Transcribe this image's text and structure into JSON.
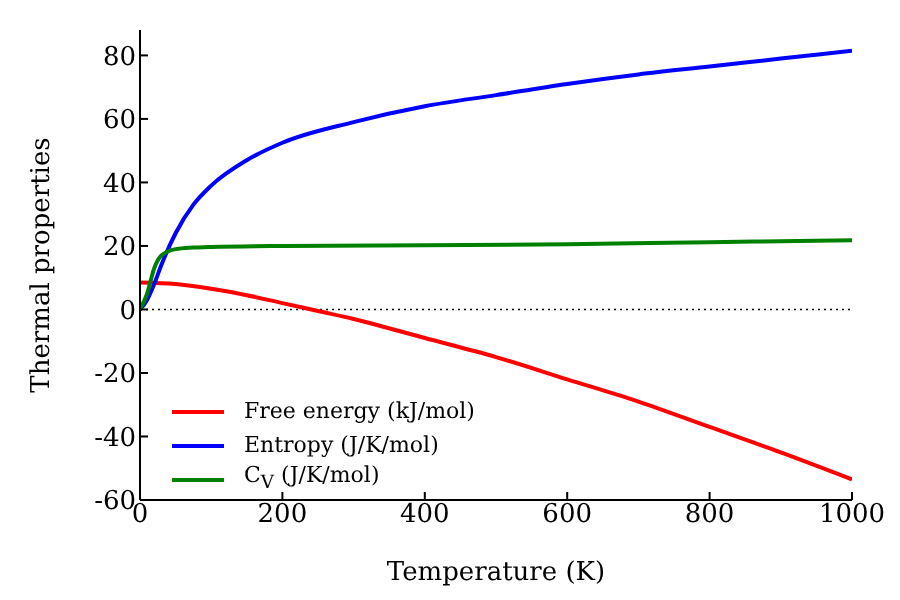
{
  "chart_data": {
    "type": "line",
    "xlabel": "Temperature (K)",
    "ylabel": "Thermal properties",
    "xlim": [
      0,
      1000
    ],
    "xticks": [
      0,
      200,
      400,
      600,
      800,
      1000
    ],
    "ylim": [
      -60,
      88
    ],
    "yticks": [
      -60,
      -40,
      -20,
      0,
      20,
      40,
      60,
      80
    ],
    "grid": false,
    "legend": "bottom left",
    "marker": "none",
    "line_style": "solid",
    "ref_lines": [
      {
        "axis": "y",
        "value": 0,
        "color": "#000000",
        "line_style": "dotted"
      }
    ],
    "series": [
      {
        "name": "Free energy (kJ/mol)",
        "color": "#ff0000",
        "x": [
          0,
          50,
          100,
          150,
          200,
          250,
          300,
          400,
          500,
          600,
          700,
          800,
          900,
          1000
        ],
        "values": [
          8.5,
          8,
          6.5,
          4.5,
          2,
          -0.5,
          -3,
          -9,
          -15,
          -22,
          -29,
          -37,
          -45,
          -53.5
        ]
      },
      {
        "name": "Entropy (J/K/mol)",
        "color": "#0000ff",
        "x": [
          0,
          10,
          20,
          30,
          50,
          75,
          100,
          150,
          200,
          300,
          400,
          500,
          600,
          700,
          800,
          900,
          1000
        ],
        "values": [
          0,
          3,
          8,
          14,
          24,
          33,
          39,
          47,
          52.5,
          59,
          64,
          67.5,
          71,
          74,
          76.5,
          79,
          81.5
        ]
      },
      {
        "name": "C$_{V}$ (J/K/mol)",
        "color": "#008000",
        "x": [
          0,
          10,
          20,
          30,
          50,
          75,
          100,
          200,
          400,
          600,
          800,
          1000
        ],
        "values": [
          0,
          5,
          13,
          17,
          19,
          19.5,
          19.7,
          20,
          20.2,
          20.5,
          21.2,
          21.8
        ]
      }
    ]
  }
}
